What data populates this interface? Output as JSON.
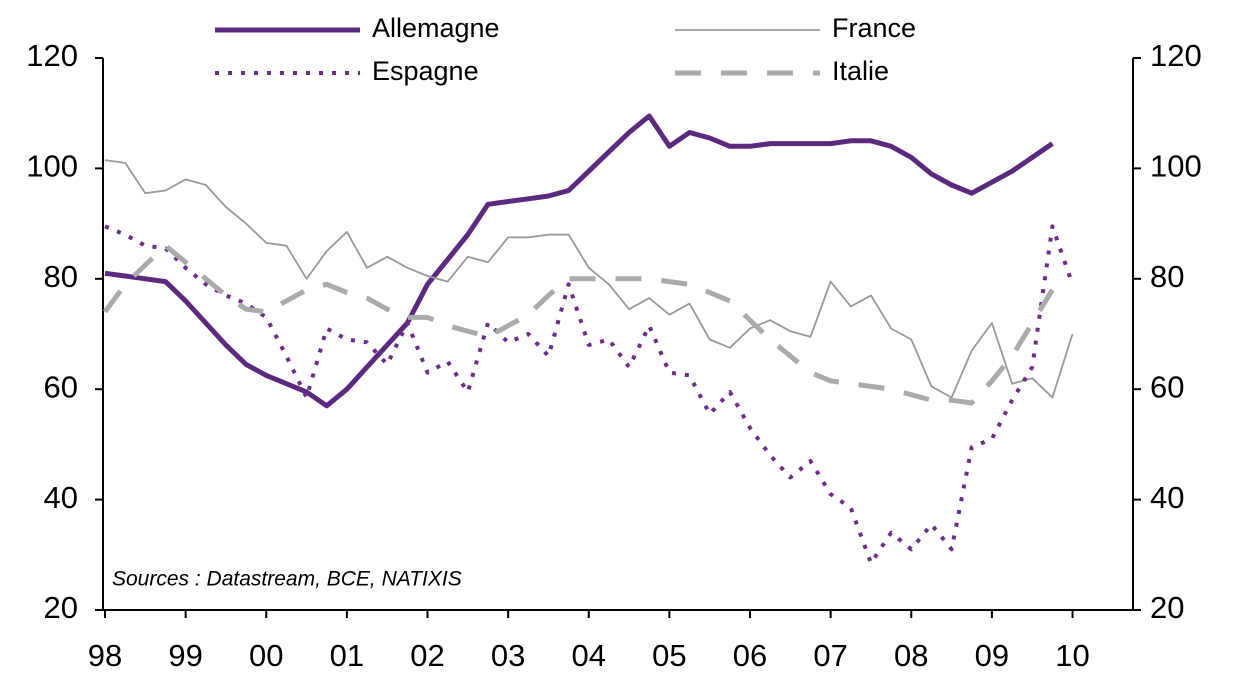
{
  "chart_data": {
    "type": "line",
    "annotation": "Sources : Datastream, BCE, NATIXIS",
    "x": [
      1998,
      1998.25,
      1998.5,
      1998.75,
      1999,
      1999.25,
      1999.5,
      1999.75,
      2000,
      2000.25,
      2000.5,
      2000.75,
      2001,
      2001.25,
      2001.5,
      2001.75,
      2002,
      2002.25,
      2002.5,
      2002.75,
      2003,
      2003.25,
      2003.5,
      2003.75,
      2004,
      2004.25,
      2004.5,
      2004.75,
      2005,
      2005.25,
      2005.5,
      2005.75,
      2006,
      2006.25,
      2006.5,
      2006.75,
      2007,
      2007.25,
      2007.5,
      2007.75,
      2008,
      2008.25,
      2008.5,
      2008.75,
      2009,
      2009.25,
      2009.5,
      2009.75,
      2010
    ],
    "series": [
      {
        "name": "Allemagne",
        "color": "#5b2a7e",
        "linestyle": "solid",
        "linewidth": 5,
        "values": [
          81,
          80.5,
          80,
          79.5,
          76,
          72,
          68,
          64.5,
          62.5,
          61,
          59.5,
          57,
          60,
          64,
          68,
          72,
          79,
          83.5,
          88,
          93.5,
          94,
          94.5,
          95,
          96,
          99.5,
          103,
          106.5,
          109.5,
          104,
          106.5,
          105.5,
          104,
          104,
          104.5,
          104.5,
          104.5,
          104.5,
          105,
          105,
          104,
          102,
          99,
          97,
          95.5,
          97.5,
          99.5,
          102,
          104.5,
          null
        ]
      },
      {
        "name": "France",
        "color": "#999999",
        "linestyle": "solid",
        "linewidth": 1.8,
        "values": [
          101.5,
          101,
          95.5,
          96,
          98,
          97,
          93,
          90,
          86.5,
          86,
          80,
          85,
          88.5,
          82,
          84,
          82,
          80.5,
          79.5,
          84,
          83,
          87.5,
          87.5,
          88,
          88,
          82,
          79,
          74.5,
          76.5,
          73.5,
          75.5,
          69,
          67.5,
          71,
          72.5,
          70.5,
          69.5,
          79.5,
          75,
          77,
          71,
          69,
          60.5,
          58.5,
          67,
          72,
          61,
          62,
          58.5,
          70
        ]
      },
      {
        "name": "Espagne",
        "color": "#6b2c8a",
        "linestyle": "dotted",
        "linewidth": 4,
        "values": [
          89.5,
          88,
          86,
          85.5,
          82,
          79,
          77,
          75.5,
          73,
          66,
          58.5,
          71,
          69,
          68.5,
          64.5,
          72,
          63,
          65,
          59.5,
          72,
          68.5,
          70,
          66,
          79,
          68,
          69,
          64,
          71.5,
          63,
          62.5,
          55.5,
          59.5,
          53,
          48,
          44,
          47,
          41,
          38.5,
          28.5,
          34,
          31,
          35.5,
          31,
          49.5,
          51,
          58,
          64,
          89.5,
          79
        ]
      },
      {
        "name": "Italie",
        "color": "#aaaaaa",
        "linestyle": "dashed",
        "linewidth": 5,
        "values": [
          74,
          79,
          82.5,
          86,
          83,
          80,
          77,
          74.5,
          74,
          76,
          78,
          79,
          77.5,
          76.5,
          74.5,
          73,
          73,
          71.5,
          70.5,
          69.5,
          71.5,
          73.5,
          77,
          80,
          80,
          80,
          80,
          80,
          79.5,
          79,
          77.5,
          76,
          72.5,
          69,
          66,
          63,
          61.5,
          61,
          60.5,
          60,
          59,
          58,
          58,
          57.5,
          61.5,
          66,
          72,
          78,
          null
        ]
      }
    ],
    "xlim": [
      1998,
      2010.75
    ],
    "xticks": [
      {
        "value": 1998,
        "label": "98"
      },
      {
        "value": 1999,
        "label": "99"
      },
      {
        "value": 2000,
        "label": "00"
      },
      {
        "value": 2001,
        "label": "01"
      },
      {
        "value": 2002,
        "label": "02"
      },
      {
        "value": 2003,
        "label": "03"
      },
      {
        "value": 2004,
        "label": "04"
      },
      {
        "value": 2005,
        "label": "05"
      },
      {
        "value": 2006,
        "label": "06"
      },
      {
        "value": 2007,
        "label": "07"
      },
      {
        "value": 2008,
        "label": "08"
      },
      {
        "value": 2009,
        "label": "09"
      },
      {
        "value": 2010,
        "label": "10"
      }
    ],
    "ylim": [
      20,
      120
    ],
    "yticks": [
      20,
      40,
      60,
      80,
      100,
      120
    ],
    "y2lim": [
      20,
      120
    ],
    "y2ticks": [
      20,
      40,
      60,
      80,
      100,
      120
    ],
    "legend": "top"
  }
}
